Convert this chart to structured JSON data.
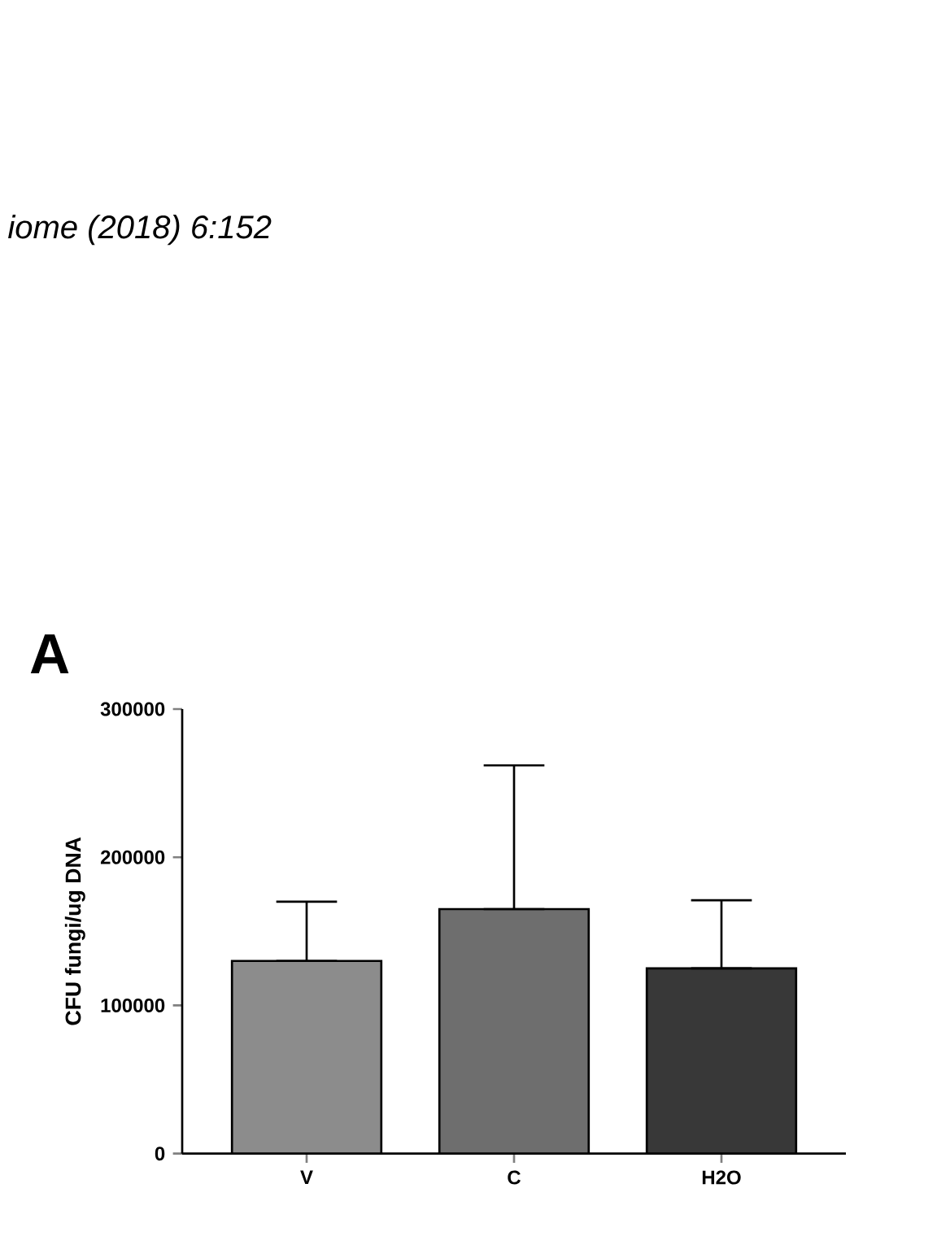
{
  "chart_data": {
    "type": "bar",
    "title": "A",
    "ylabel": "CFU fungi/ug DNA",
    "annotations": [
      "iome  (2018) 6:152"
    ],
    "categories": [
      "V",
      "C",
      "H2O"
    ],
    "values": [
      130000,
      165000,
      125000
    ],
    "colors": [
      "#8c8c8c",
      "#6e6e6e",
      "#383838"
    ],
    "errors": [
      [
        130000,
        170000
      ],
      [
        165000,
        262000
      ],
      [
        125000,
        171000
      ]
    ],
    "ylim": [
      0,
      300000
    ],
    "yticks": [
      0,
      100000,
      200000,
      300000
    ]
  }
}
